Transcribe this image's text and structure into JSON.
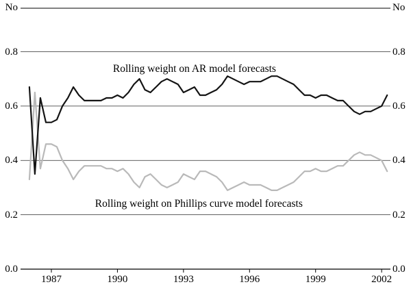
{
  "chart_data": {
    "type": "line",
    "title": "",
    "y_axis_unit": "No",
    "xlim": [
      1985.6,
      2002.4
    ],
    "ylim": [
      0,
      0.96
    ],
    "grid": true,
    "y_ticks": [
      0.0,
      0.2,
      0.4,
      0.6,
      0.8
    ],
    "y_tick_labels": [
      "0.0",
      "0.2",
      "0.4",
      "0.6",
      "0.8"
    ],
    "x_ticks": [
      1987,
      1990,
      1993,
      1996,
      1999,
      2002
    ],
    "x_tick_labels": [
      "1987",
      "1990",
      "1993",
      "1996",
      "1999",
      "2002"
    ],
    "x": [
      1986,
      1986.25,
      1986.5,
      1986.75,
      1987,
      1987.25,
      1987.5,
      1987.75,
      1988,
      1988.25,
      1988.5,
      1988.75,
      1989,
      1989.25,
      1989.5,
      1989.75,
      1990,
      1990.25,
      1990.5,
      1990.75,
      1991,
      1991.25,
      1991.5,
      1991.75,
      1992,
      1992.25,
      1992.5,
      1992.75,
      1993,
      1993.25,
      1993.5,
      1993.75,
      1994,
      1994.25,
      1994.5,
      1994.75,
      1995,
      1995.25,
      1995.5,
      1995.75,
      1996,
      1996.25,
      1996.5,
      1996.75,
      1997,
      1997.25,
      1997.5,
      1997.75,
      1998,
      1998.25,
      1998.5,
      1998.75,
      1999,
      1999.25,
      1999.5,
      1999.75,
      2000,
      2000.25,
      2000.5,
      2000.75,
      2001,
      2001.25,
      2001.5,
      2001.75,
      2002,
      2002.25
    ],
    "series": [
      {
        "name": "Rolling weight on AR model forecasts",
        "color": "#141414",
        "width": 2.2,
        "values": [
          0.67,
          0.35,
          0.63,
          0.54,
          0.54,
          0.55,
          0.6,
          0.63,
          0.67,
          0.64,
          0.62,
          0.62,
          0.62,
          0.62,
          0.63,
          0.63,
          0.64,
          0.63,
          0.65,
          0.68,
          0.7,
          0.66,
          0.65,
          0.67,
          0.69,
          0.7,
          0.69,
          0.68,
          0.65,
          0.66,
          0.67,
          0.64,
          0.64,
          0.65,
          0.66,
          0.68,
          0.71,
          0.7,
          0.69,
          0.68,
          0.69,
          0.69,
          0.69,
          0.7,
          0.71,
          0.71,
          0.7,
          0.69,
          0.68,
          0.66,
          0.64,
          0.64,
          0.63,
          0.64,
          0.64,
          0.63,
          0.62,
          0.62,
          0.6,
          0.58,
          0.57,
          0.58,
          0.58,
          0.59,
          0.6,
          0.64
        ]
      },
      {
        "name": "Rolling weight on Phillips curve model forecasts",
        "color": "#b9b9b9",
        "width": 2.2,
        "values": [
          0.33,
          0.65,
          0.37,
          0.46,
          0.46,
          0.45,
          0.4,
          0.37,
          0.33,
          0.36,
          0.38,
          0.38,
          0.38,
          0.38,
          0.37,
          0.37,
          0.36,
          0.37,
          0.35,
          0.32,
          0.3,
          0.34,
          0.35,
          0.33,
          0.31,
          0.3,
          0.31,
          0.32,
          0.35,
          0.34,
          0.33,
          0.36,
          0.36,
          0.35,
          0.34,
          0.32,
          0.29,
          0.3,
          0.31,
          0.32,
          0.31,
          0.31,
          0.31,
          0.3,
          0.29,
          0.29,
          0.3,
          0.31,
          0.32,
          0.34,
          0.36,
          0.36,
          0.37,
          0.36,
          0.36,
          0.37,
          0.38,
          0.38,
          0.4,
          0.42,
          0.43,
          0.42,
          0.42,
          0.41,
          0.4,
          0.36
        ]
      }
    ],
    "annotations": [
      {
        "text": "Rolling weight on AR model forecasts",
        "x": 1993.5,
        "y": 0.735
      },
      {
        "text": "Rolling weight on Phillips curve model forecasts",
        "x": 1993.7,
        "y": 0.24
      }
    ],
    "legend_position": "none",
    "colors": {
      "axis": "#000000",
      "gridline": "#2b2b2b",
      "background": "#ffffff"
    }
  }
}
